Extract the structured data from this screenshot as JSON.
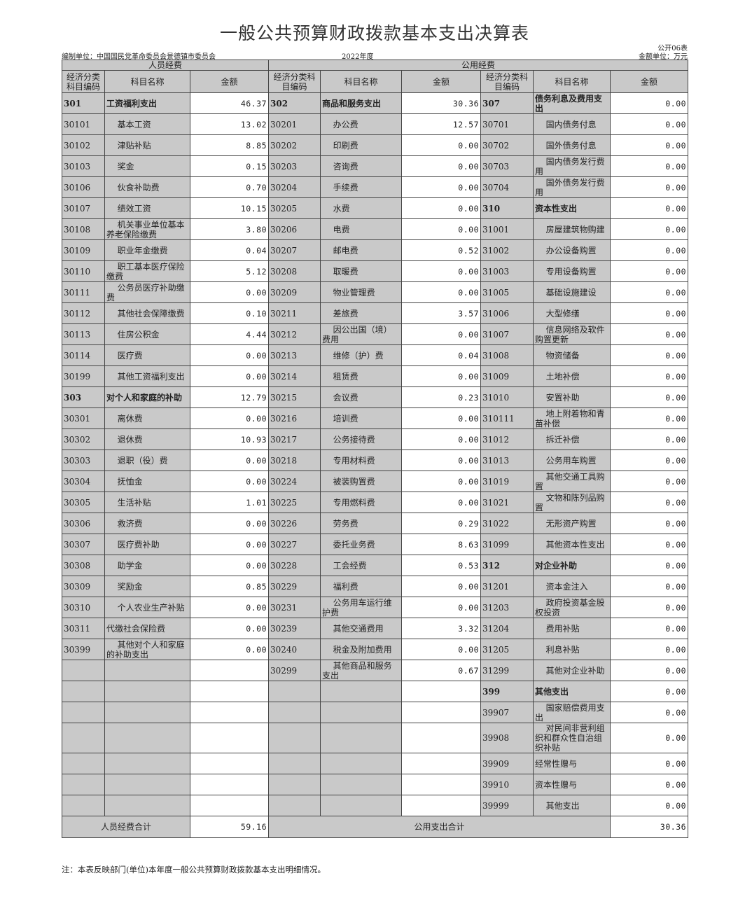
{
  "title": "一般公共预算财政拨款基本支出决算表",
  "form_no": "公开06表",
  "unit_label": "编制单位：中国国民党革命委员会景德镇市委员会",
  "year": "2022年度",
  "amount_unit": "金额单位：万元",
  "groups": {
    "personnel": "人员经费",
    "public": "公用经费"
  },
  "columns": {
    "code": "经济分类科目编码",
    "code_right": "经济分类科目编码",
    "name": "科目名称",
    "amount": "金额"
  },
  "rows": [
    {
      "l": {
        "code": "301",
        "name": "工资福利支出",
        "amount": "46.37",
        "bold": true
      },
      "m": {
        "code": "302",
        "name": "商品和服务支出",
        "amount": "30.36",
        "bold": true
      },
      "r": {
        "code": "307",
        "name": "债务利息及费用支出",
        "amount": "0.00",
        "bold": true
      }
    },
    {
      "l": {
        "code": "30101",
        "name": "基本工资",
        "amount": "13.02"
      },
      "m": {
        "code": "30201",
        "name": "办公费",
        "amount": "12.57"
      },
      "r": {
        "code": "30701",
        "name": "国内债务付息",
        "amount": "0.00"
      }
    },
    {
      "l": {
        "code": "30102",
        "name": "津贴补贴",
        "amount": "8.85"
      },
      "m": {
        "code": "30202",
        "name": "印刷费",
        "amount": "0.00"
      },
      "r": {
        "code": "30702",
        "name": "国外债务付息",
        "amount": "0.00"
      }
    },
    {
      "l": {
        "code": "30103",
        "name": "奖金",
        "amount": "0.15"
      },
      "m": {
        "code": "30203",
        "name": "咨询费",
        "amount": "0.00"
      },
      "r": {
        "code": "30703",
        "name": "国内债务发行费用",
        "amount": "0.00"
      }
    },
    {
      "l": {
        "code": "30106",
        "name": "伙食补助费",
        "amount": "0.70"
      },
      "m": {
        "code": "30204",
        "name": "手续费",
        "amount": "0.00"
      },
      "r": {
        "code": "30704",
        "name": "国外债务发行费用",
        "amount": "0.00"
      }
    },
    {
      "l": {
        "code": "30107",
        "name": "绩效工资",
        "amount": "10.15"
      },
      "m": {
        "code": "30205",
        "name": "水费",
        "amount": "0.00"
      },
      "r": {
        "code": "310",
        "name": "资本性支出",
        "amount": "0.00",
        "bold": true
      }
    },
    {
      "l": {
        "code": "30108",
        "name": "机关事业单位基本养老保险缴费",
        "amount": "3.80"
      },
      "m": {
        "code": "30206",
        "name": "电费",
        "amount": "0.00"
      },
      "r": {
        "code": "31001",
        "name": "房屋建筑物购建",
        "amount": "0.00"
      }
    },
    {
      "l": {
        "code": "30109",
        "name": "职业年金缴费",
        "amount": "0.04"
      },
      "m": {
        "code": "30207",
        "name": "邮电费",
        "amount": "0.52"
      },
      "r": {
        "code": "31002",
        "name": "办公设备购置",
        "amount": "0.00"
      }
    },
    {
      "l": {
        "code": "30110",
        "name": "职工基本医疗保险缴费",
        "amount": "5.12"
      },
      "m": {
        "code": "30208",
        "name": "取暖费",
        "amount": "0.00"
      },
      "r": {
        "code": "31003",
        "name": "专用设备购置",
        "amount": "0.00"
      }
    },
    {
      "l": {
        "code": "30111",
        "name": "公务员医疗补助缴费",
        "amount": "0.00"
      },
      "m": {
        "code": "30209",
        "name": "物业管理费",
        "amount": "0.00"
      },
      "r": {
        "code": "31005",
        "name": "基础设施建设",
        "amount": "0.00"
      }
    },
    {
      "l": {
        "code": "30112",
        "name": "其他社会保障缴费",
        "amount": "0.10"
      },
      "m": {
        "code": "30211",
        "name": "差旅费",
        "amount": "3.57"
      },
      "r": {
        "code": "31006",
        "name": "大型修缮",
        "amount": "0.00"
      }
    },
    {
      "l": {
        "code": "30113",
        "name": "住房公积金",
        "amount": "4.44"
      },
      "m": {
        "code": "30212",
        "name": "因公出国（境）费用",
        "amount": "0.00"
      },
      "r": {
        "code": "31007",
        "name": "信息网络及软件购置更新",
        "amount": "0.00"
      }
    },
    {
      "l": {
        "code": "30114",
        "name": "医疗费",
        "amount": "0.00"
      },
      "m": {
        "code": "30213",
        "name": "维修（护）费",
        "amount": "0.04"
      },
      "r": {
        "code": "31008",
        "name": "物资储备",
        "amount": "0.00"
      }
    },
    {
      "l": {
        "code": "30199",
        "name": "其他工资福利支出",
        "amount": "0.00"
      },
      "m": {
        "code": "30214",
        "name": "租赁费",
        "amount": "0.00"
      },
      "r": {
        "code": "31009",
        "name": "土地补偿",
        "amount": "0.00"
      }
    },
    {
      "l": {
        "code": "303",
        "name": "对个人和家庭的补助",
        "amount": "12.79",
        "bold": true
      },
      "m": {
        "code": "30215",
        "name": "会议费",
        "amount": "0.23"
      },
      "r": {
        "code": "31010",
        "name": "安置补助",
        "amount": "0.00"
      }
    },
    {
      "l": {
        "code": "30301",
        "name": "离休费",
        "amount": "0.00"
      },
      "m": {
        "code": "30216",
        "name": "培训费",
        "amount": "0.00"
      },
      "r": {
        "code": "310111",
        "name": "地上附着物和青苗补偿",
        "amount": "0.00"
      }
    },
    {
      "l": {
        "code": "30302",
        "name": "退休费",
        "amount": "10.93"
      },
      "m": {
        "code": "30217",
        "name": "公务接待费",
        "amount": "0.00"
      },
      "r": {
        "code": "31012",
        "name": "拆迁补偿",
        "amount": "0.00"
      }
    },
    {
      "l": {
        "code": "30303",
        "name": "退职（役）费",
        "amount": "0.00"
      },
      "m": {
        "code": "30218",
        "name": "专用材料费",
        "amount": "0.00"
      },
      "r": {
        "code": "31013",
        "name": "公务用车购置",
        "amount": "0.00"
      }
    },
    {
      "l": {
        "code": "30304",
        "name": "抚恤金",
        "amount": "0.00"
      },
      "m": {
        "code": "30224",
        "name": "被装购置费",
        "amount": "0.00"
      },
      "r": {
        "code": "31019",
        "name": "其他交通工具购置",
        "amount": "0.00"
      }
    },
    {
      "l": {
        "code": "30305",
        "name": "生活补贴",
        "amount": "1.01"
      },
      "m": {
        "code": "30225",
        "name": "专用燃料费",
        "amount": "0.00"
      },
      "r": {
        "code": "31021",
        "name": "文物和陈列品购置",
        "amount": "0.00"
      }
    },
    {
      "l": {
        "code": "30306",
        "name": "救济费",
        "amount": "0.00"
      },
      "m": {
        "code": "30226",
        "name": "劳务费",
        "amount": "0.29"
      },
      "r": {
        "code": "31022",
        "name": "无形资产购置",
        "amount": "0.00"
      }
    },
    {
      "l": {
        "code": "30307",
        "name": "医疗费补助",
        "amount": "0.00"
      },
      "m": {
        "code": "30227",
        "name": "委托业务费",
        "amount": "8.63"
      },
      "r": {
        "code": "31099",
        "name": "其他资本性支出",
        "amount": "0.00"
      }
    },
    {
      "l": {
        "code": "30308",
        "name": "助学金",
        "amount": "0.00"
      },
      "m": {
        "code": "30228",
        "name": "工会经费",
        "amount": "0.53"
      },
      "r": {
        "code": "312",
        "name": "对企业补助",
        "amount": "0.00",
        "bold": true
      }
    },
    {
      "l": {
        "code": "30309",
        "name": "奖励金",
        "amount": "0.85"
      },
      "m": {
        "code": "30229",
        "name": "福利费",
        "amount": "0.00"
      },
      "r": {
        "code": "31201",
        "name": "资本金注入",
        "amount": "0.00"
      }
    },
    {
      "l": {
        "code": "30310",
        "name": "个人农业生产补贴",
        "amount": "0.00"
      },
      "m": {
        "code": "30231",
        "name": "公务用车运行维护费",
        "amount": "0.00"
      },
      "r": {
        "code": "31203",
        "name": "政府投资基金股权投资",
        "amount": "0.00"
      }
    },
    {
      "l": {
        "code": "30311",
        "name": "代缴社会保险费",
        "amount": "0.00"
      },
      "m": {
        "code": "30239",
        "name": "其他交通费用",
        "amount": "3.32"
      },
      "r": {
        "code": "31204",
        "name": "费用补贴",
        "amount": "0.00"
      }
    },
    {
      "l": {
        "code": "30399",
        "name": "其他对个人和家庭的补助支出",
        "amount": "0.00"
      },
      "m": {
        "code": "30240",
        "name": "税金及附加费用",
        "amount": "0.00"
      },
      "r": {
        "code": "31205",
        "name": "利息补贴",
        "amount": "0.00"
      }
    },
    {
      "l": {
        "code": "",
        "name": "",
        "amount": ""
      },
      "m": {
        "code": "30299",
        "name": "其他商品和服务支出",
        "amount": "0.67"
      },
      "r": {
        "code": "31299",
        "name": "其他对企业补助",
        "amount": "0.00"
      }
    },
    {
      "l": {
        "code": "",
        "name": "",
        "amount": ""
      },
      "m": {
        "code": "",
        "name": "",
        "amount": ""
      },
      "r": {
        "code": "399",
        "name": "其他支出",
        "amount": "0.00",
        "bold": true
      }
    },
    {
      "l": {
        "code": "",
        "name": "",
        "amount": ""
      },
      "m": {
        "code": "",
        "name": "",
        "amount": ""
      },
      "r": {
        "code": "39907",
        "name": "国家赔偿费用支出",
        "amount": "0.00"
      }
    },
    {
      "l": {
        "code": "",
        "name": "",
        "amount": ""
      },
      "m": {
        "code": "",
        "name": "",
        "amount": ""
      },
      "r": {
        "code": "39908",
        "name": "对民间非营利组织和群众性自治组织补贴",
        "amount": "0.00"
      }
    },
    {
      "l": {
        "code": "",
        "name": "",
        "amount": ""
      },
      "m": {
        "code": "",
        "name": "",
        "amount": ""
      },
      "r": {
        "code": "39909",
        "name": "经常性赠与",
        "amount": "0.00"
      }
    },
    {
      "l": {
        "code": "",
        "name": "",
        "amount": ""
      },
      "m": {
        "code": "",
        "name": "",
        "amount": ""
      },
      "r": {
        "code": "39910",
        "name": "资本性赠与",
        "amount": "0.00"
      }
    },
    {
      "l": {
        "code": "",
        "name": "",
        "amount": ""
      },
      "m": {
        "code": "",
        "name": "",
        "amount": ""
      },
      "r": {
        "code": "39999",
        "name": "其他支出",
        "amount": "0.00"
      }
    }
  ],
  "totals": {
    "personnel_label": "人员经费合计",
    "personnel_amount": "59.16",
    "public_label": "公用支出合计",
    "public_amount": "30.36"
  },
  "note": "注：本表反映部门(单位)本年度一般公共预算财政拨款基本支出明细情况。"
}
